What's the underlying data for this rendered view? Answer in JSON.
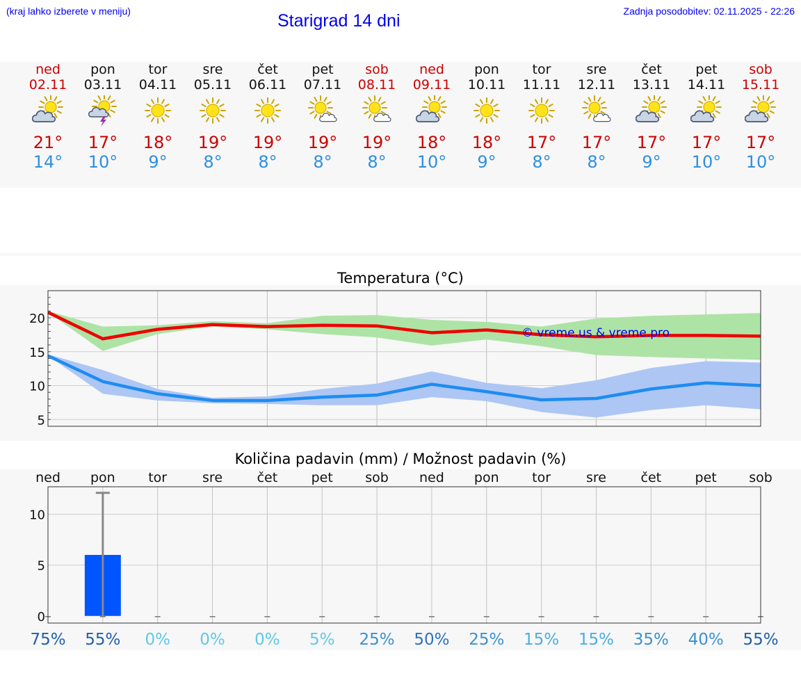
{
  "header": {
    "hint": "(kraj lahko izberete v meniju)",
    "title": "Starigrad 14 dni",
    "updated": "Zadnja posodobitev: 02.11.2025 - 22:26"
  },
  "days": [
    {
      "name": "ned",
      "date": "02.11",
      "weekend": true,
      "icon": "sun-cloud-icon",
      "max": "21°",
      "min": "14°"
    },
    {
      "name": "pon",
      "date": "03.11",
      "weekend": false,
      "icon": "sun-storm-icon",
      "max": "17°",
      "min": "10°"
    },
    {
      "name": "tor",
      "date": "04.11",
      "weekend": false,
      "icon": "sun-icon",
      "max": "18°",
      "min": "9°"
    },
    {
      "name": "sre",
      "date": "05.11",
      "weekend": false,
      "icon": "sun-icon",
      "max": "19°",
      "min": "8°"
    },
    {
      "name": "čet",
      "date": "06.11",
      "weekend": false,
      "icon": "sun-icon",
      "max": "19°",
      "min": "8°"
    },
    {
      "name": "pet",
      "date": "07.11",
      "weekend": false,
      "icon": "sun-small-cloud-icon",
      "max": "19°",
      "min": "8°"
    },
    {
      "name": "sob",
      "date": "08.11",
      "weekend": true,
      "icon": "sun-small-cloud-icon",
      "max": "19°",
      "min": "8°"
    },
    {
      "name": "ned",
      "date": "09.11",
      "weekend": true,
      "icon": "sun-cloud-icon",
      "max": "18°",
      "min": "10°"
    },
    {
      "name": "pon",
      "date": "10.11",
      "weekend": false,
      "icon": "sun-icon",
      "max": "18°",
      "min": "9°"
    },
    {
      "name": "tor",
      "date": "11.11",
      "weekend": false,
      "icon": "sun-icon",
      "max": "17°",
      "min": "8°"
    },
    {
      "name": "sre",
      "date": "12.11",
      "weekend": false,
      "icon": "sun-small-cloud-icon",
      "max": "17°",
      "min": "8°"
    },
    {
      "name": "čet",
      "date": "13.11",
      "weekend": false,
      "icon": "sun-cloud-icon",
      "max": "17°",
      "min": "9°"
    },
    {
      "name": "pet",
      "date": "14.11",
      "weekend": false,
      "icon": "sun-cloud-icon",
      "max": "17°",
      "min": "10°"
    },
    {
      "name": "sob",
      "date": "15.11",
      "weekend": true,
      "icon": "sun-cloud-icon",
      "max": "17°",
      "min": "10°"
    }
  ],
  "chart_data": [
    {
      "type": "line",
      "title": "Temperatura (°C)",
      "watermark": "© vreme.us & vreme.pro",
      "x": [
        0,
        1,
        2,
        3,
        4,
        5,
        6,
        7,
        8,
        9,
        10,
        11,
        12,
        13
      ],
      "ylim": [
        4,
        24
      ],
      "yticks": [
        5,
        10,
        15,
        20
      ],
      "grid": true,
      "series": [
        {
          "name": "max",
          "color": "#ee0000",
          "values": [
            20.8,
            16.9,
            18.3,
            19.0,
            18.7,
            18.9,
            18.8,
            17.8,
            18.2,
            17.5,
            17.2,
            17.4,
            17.4,
            17.3
          ],
          "band_low": [
            20.8,
            15.1,
            17.6,
            18.7,
            18.3,
            17.6,
            17.1,
            15.9,
            16.8,
            15.8,
            14.5,
            14.2,
            14.0,
            13.8
          ],
          "band_high": [
            21.0,
            18.7,
            18.9,
            19.5,
            19.2,
            20.3,
            20.4,
            19.7,
            19.4,
            18.7,
            19.9,
            20.3,
            20.5,
            20.7
          ],
          "band_color": "#aee3a6"
        },
        {
          "name": "min",
          "color": "#1e8cf0",
          "values": [
            14.4,
            10.6,
            8.8,
            7.8,
            7.8,
            8.3,
            8.6,
            10.2,
            9.1,
            7.9,
            8.1,
            9.5,
            10.4,
            10.0
          ],
          "band_low": [
            14.4,
            8.8,
            7.8,
            7.4,
            7.3,
            7.1,
            7.1,
            8.3,
            7.7,
            6.1,
            5.3,
            6.4,
            7.1,
            6.5
          ],
          "band_high": [
            14.6,
            12.3,
            9.5,
            8.2,
            8.4,
            9.5,
            10.3,
            12.1,
            10.4,
            9.6,
            10.8,
            12.6,
            13.6,
            13.4
          ],
          "band_color": "#adc6f4"
        }
      ]
    },
    {
      "type": "bar",
      "title": "Količina padavin (mm) / Možnost padavin (%)",
      "categories": [
        "ned",
        "pon",
        "tor",
        "sre",
        "čet",
        "pet",
        "sob",
        "ned",
        "pon",
        "tor",
        "sre",
        "čet",
        "pet",
        "sob"
      ],
      "values": [
        0,
        6.0,
        0,
        0,
        0,
        0,
        0,
        0,
        0,
        0,
        0,
        0,
        0,
        0
      ],
      "error_high": [
        0,
        12.1,
        0,
        0,
        0,
        0,
        0,
        0,
        0,
        0,
        0,
        0,
        0,
        0
      ],
      "probability": [
        "75%",
        "55%",
        "0%",
        "0%",
        "0%",
        "5%",
        "25%",
        "50%",
        "25%",
        "15%",
        "15%",
        "35%",
        "40%",
        "55%"
      ],
      "ylim": [
        -0.7,
        12.7
      ],
      "yticks": [
        0,
        5,
        10
      ],
      "bar_color": "#0055ff"
    }
  ]
}
